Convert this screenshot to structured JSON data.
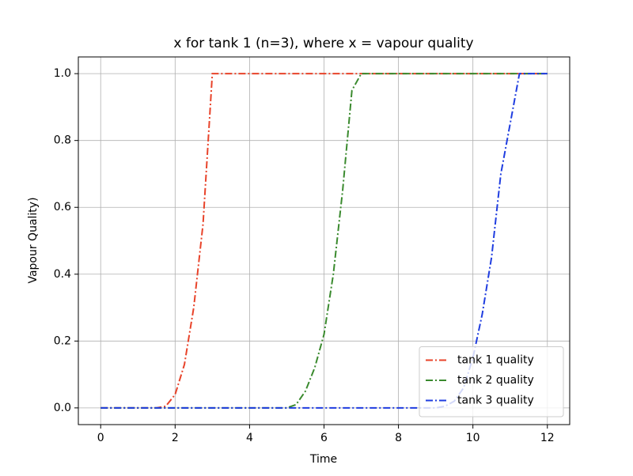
{
  "chart_data": {
    "type": "line",
    "title": "x for tank 1 (n=3), where x = vapour quality",
    "xlabel": "Time",
    "ylabel": "Vapour Quality)",
    "x": [
      0,
      0.25,
      0.5,
      0.75,
      1,
      1.25,
      1.5,
      1.75,
      2,
      2.25,
      2.5,
      2.75,
      3,
      3.25,
      3.5,
      3.75,
      4,
      4.25,
      4.5,
      4.75,
      5,
      5.25,
      5.5,
      5.75,
      6,
      6.25,
      6.5,
      6.75,
      7,
      7.25,
      7.5,
      7.75,
      8,
      8.25,
      8.5,
      8.75,
      9,
      9.25,
      9.5,
      9.75,
      10,
      10.25,
      10.5,
      10.75,
      11,
      11.25,
      11.5,
      11.75,
      12
    ],
    "series": [
      {
        "name": "tank 1 quality",
        "color": "#e8432a",
        "values": [
          0,
          0,
          0,
          0,
          0,
          0,
          0,
          0.005,
          0.04,
          0.13,
          0.3,
          0.55,
          1,
          1,
          1,
          1,
          1,
          1,
          1,
          1,
          1,
          1,
          1,
          1,
          1,
          1,
          1,
          1,
          1,
          1,
          1,
          1,
          1,
          1,
          1,
          1,
          1,
          1,
          1,
          1,
          1,
          1,
          1,
          1,
          1,
          1,
          1,
          1,
          1
        ]
      },
      {
        "name": "tank 2 quality",
        "color": "#3a8a2e",
        "values": [
          0,
          0,
          0,
          0,
          0,
          0,
          0,
          0,
          0,
          0,
          0,
          0,
          0,
          0,
          0,
          0,
          0,
          0,
          0,
          0,
          0,
          0.01,
          0.05,
          0.12,
          0.22,
          0.4,
          0.65,
          0.95,
          1,
          1,
          1,
          1,
          1,
          1,
          1,
          1,
          1,
          1,
          1,
          1,
          1,
          1,
          1,
          1,
          1,
          1,
          1,
          1,
          1
        ]
      },
      {
        "name": "tank 3 quality",
        "color": "#1f3de0",
        "values": [
          0,
          0,
          0,
          0,
          0,
          0,
          0,
          0,
          0,
          0,
          0,
          0,
          0,
          0,
          0,
          0,
          0,
          0,
          0,
          0,
          0,
          0,
          0,
          0,
          0,
          0,
          0,
          0,
          0,
          0,
          0,
          0,
          0,
          0,
          0,
          0,
          0,
          0.005,
          0.02,
          0.06,
          0.15,
          0.28,
          0.45,
          0.7,
          0.85,
          1,
          1,
          1,
          1
        ]
      }
    ],
    "xlim": [
      -0.6,
      12.6
    ],
    "ylim": [
      -0.05,
      1.05
    ],
    "xticks": [
      0,
      2,
      4,
      6,
      8,
      10,
      12
    ],
    "yticks": [
      {
        "value": 0,
        "label": "0.0"
      },
      {
        "value": 0.2,
        "label": "0.2"
      },
      {
        "value": 0.4,
        "label": "0.4"
      },
      {
        "value": 0.6,
        "label": "0.6"
      },
      {
        "value": 0.8,
        "label": "0.8"
      },
      {
        "value": 1,
        "label": "1.0"
      }
    ],
    "grid": true,
    "legend": "lower right"
  }
}
